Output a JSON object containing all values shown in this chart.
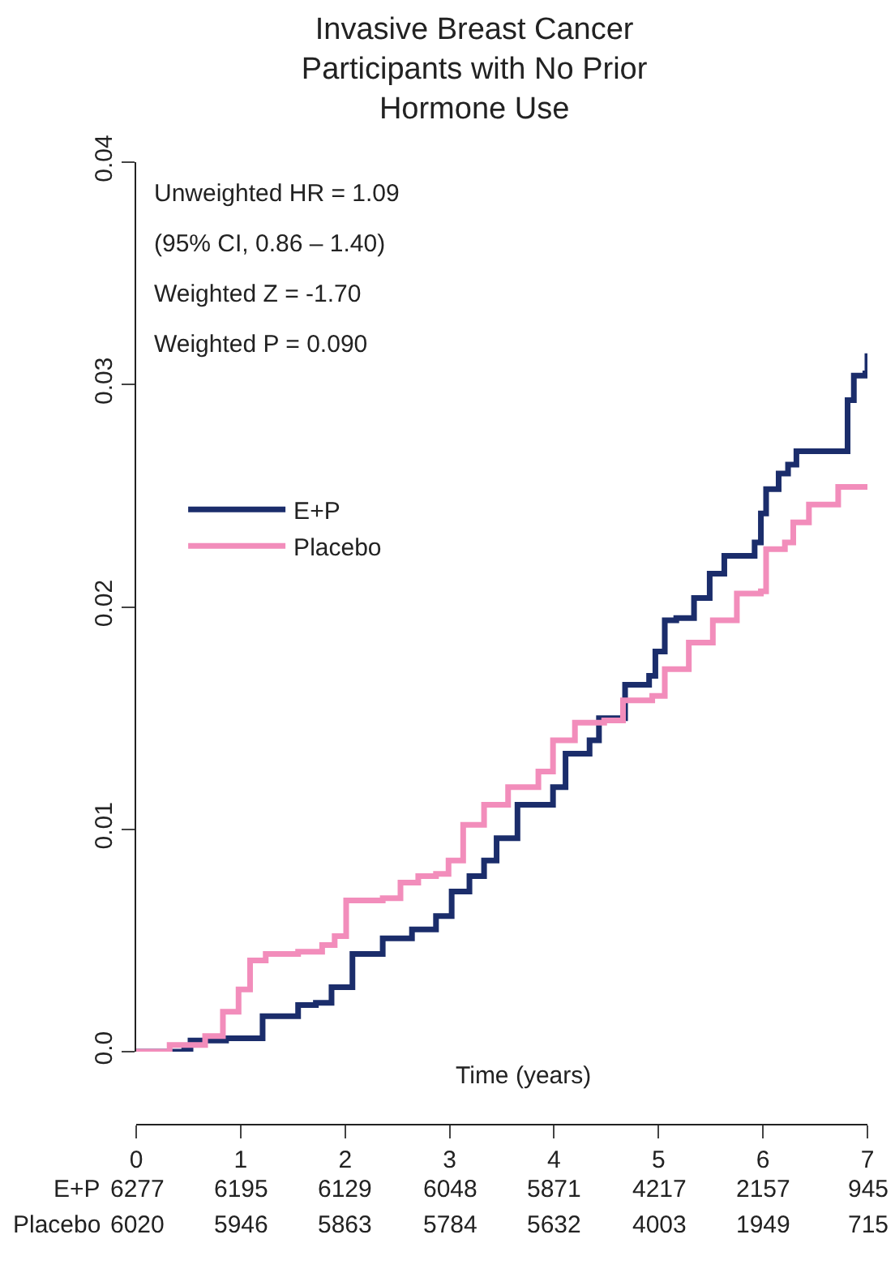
{
  "chart_data": {
    "type": "step",
    "title": "Invasive Breast Cancer\nParticipants with No Prior\nHormone Use",
    "xlabel": "Time (years)",
    "xlim": [
      0,
      7
    ],
    "xticks": [
      0,
      1,
      2,
      3,
      4,
      5,
      6,
      7
    ],
    "ylim": [
      0,
      0.04
    ],
    "yticks": [
      {
        "value": 0,
        "label": "0.0"
      },
      0.01,
      0.02,
      0.03,
      0.04
    ],
    "grid": false,
    "legend": "left",
    "marker": "none",
    "line_style": "solid",
    "series": [
      {
        "name": "E+P",
        "color": "#1b2d6b",
        "x": [
          0,
          0.46,
          0.52,
          0.86,
          1.21,
          1.55,
          1.72,
          1.87,
          2.07,
          2.36,
          2.64,
          2.87,
          3.02,
          3.19,
          3.33,
          3.45,
          3.65,
          3.79,
          3.99,
          4.11,
          4.34,
          4.43,
          4.68,
          4.91,
          4.97,
          5.06,
          5.17,
          5.34,
          5.49,
          5.63,
          5.83,
          5.92,
          5.98,
          6.03,
          6.15,
          6.24,
          6.32,
          6.78,
          6.81,
          6.87,
          6.98,
          7.0
        ],
        "values": [
          0,
          0.0001,
          0.0005,
          0.0006,
          0.0016,
          0.0021,
          0.0022,
          0.0029,
          0.0044,
          0.0051,
          0.0055,
          0.0061,
          0.0072,
          0.0079,
          0.0086,
          0.0096,
          0.0111,
          0.0111,
          0.0119,
          0.0134,
          0.014,
          0.015,
          0.0165,
          0.0169,
          0.018,
          0.0194,
          0.0195,
          0.0204,
          0.0215,
          0.0223,
          0.0223,
          0.0229,
          0.0242,
          0.0253,
          0.026,
          0.0264,
          0.027,
          0.027,
          0.0293,
          0.0304,
          0.0305,
          0.0314
        ]
      },
      {
        "name": "Placebo",
        "color": "#f28dbb",
        "x": [
          0,
          0.32,
          0.52,
          0.66,
          0.83,
          0.98,
          1.09,
          1.24,
          1.55,
          1.78,
          1.9,
          2.01,
          2.36,
          2.53,
          2.7,
          2.87,
          2.99,
          3.13,
          3.33,
          3.56,
          3.85,
          3.99,
          4.2,
          4.48,
          4.66,
          4.94,
          5.06,
          5.29,
          5.52,
          5.75,
          5.98,
          6.03,
          6.21,
          6.29,
          6.44,
          6.67,
          6.72,
          7.0
        ],
        "values": [
          0,
          0.0003,
          0.0003,
          0.0007,
          0.0018,
          0.0028,
          0.0041,
          0.0044,
          0.0045,
          0.0048,
          0.0052,
          0.0068,
          0.0069,
          0.0076,
          0.0079,
          0.008,
          0.0086,
          0.0102,
          0.0111,
          0.0119,
          0.0126,
          0.014,
          0.0148,
          0.0149,
          0.0158,
          0.016,
          0.0172,
          0.0184,
          0.0194,
          0.0206,
          0.0207,
          0.0226,
          0.0229,
          0.0238,
          0.0246,
          0.0246,
          0.0254,
          0.0254
        ]
      }
    ],
    "annotations": [
      "Unweighted HR = 1.09",
      "(95% CI, 0.86 – 1.40)",
      "Weighted Z = -1.70",
      "Weighted P = 0.090",
      "E+P",
      "6277",
      "6195",
      "6129",
      "6048",
      "5871",
      "4217",
      "2157",
      "945",
      "Placebo",
      "6020",
      "5946",
      "5863",
      "5784",
      "5632",
      "4003",
      "1949",
      "715"
    ]
  }
}
